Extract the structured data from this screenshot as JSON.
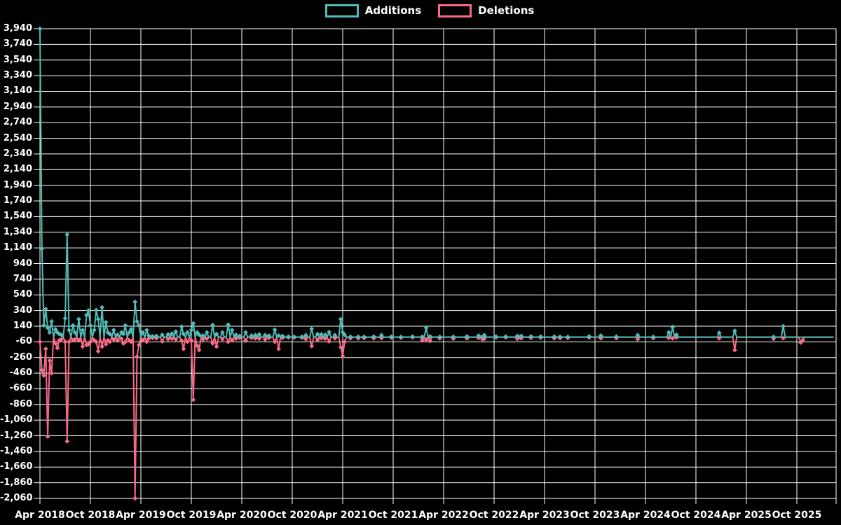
{
  "legend": {
    "additions_label": "Additions",
    "deletions_label": "Deletions"
  },
  "colors": {
    "background": "#000000",
    "grid": "#ffffff",
    "text": "#ffffff",
    "additions": "#4FBDB8",
    "deletions": "#FA6987"
  },
  "chart_data": {
    "type": "line",
    "title": "",
    "xlabel": "",
    "ylabel": "",
    "legend_position": "top-center",
    "grid": true,
    "ylim": [
      -2060,
      3940
    ],
    "y_tick_step": 200,
    "y_ticks": [
      3940,
      3740,
      3540,
      3340,
      3140,
      2940,
      2740,
      2540,
      2340,
      2140,
      1940,
      1740,
      1540,
      1340,
      1140,
      940,
      740,
      540,
      340,
      140,
      -60,
      -260,
      -460,
      -660,
      -860,
      -1060,
      -1260,
      -1460,
      -1660,
      -1860,
      -2060
    ],
    "y_tick_labels": [
      "3,940",
      "3,740",
      "3,540",
      "3,340",
      "3,140",
      "2,940",
      "2,740",
      "2,540",
      "2,340",
      "2,140",
      "1,940",
      "1,740",
      "1,540",
      "1,340",
      "1,140",
      "940",
      "740",
      "540",
      "340",
      "140",
      "-60",
      "-260",
      "-460",
      "-660",
      "-860",
      "-1,060",
      "-1,260",
      "-1,460",
      "-1,660",
      "-1,860",
      "-2,060"
    ],
    "x_tick_labels": [
      "Apr 2018",
      "Oct 2018",
      "Apr 2019",
      "Oct 2019",
      "Apr 2020",
      "Oct 2020",
      "Apr 2021",
      "Oct 2021",
      "Apr 2022",
      "Oct 2022",
      "Apr 2023",
      "Oct 2023",
      "Apr 2024",
      "Oct 2024",
      "Apr 2025",
      "Oct 2025"
    ],
    "weeks_per_x_tick": 26,
    "weeks_total": 410,
    "series": [
      {
        "name": "Additions",
        "color": "#4FBDB8",
        "sign": "positive"
      },
      {
        "name": "Deletions",
        "color": "#FA6987",
        "sign": "negative"
      }
    ],
    "points_format": "[week_index, additions, deletions] ; weeks not listed are [w, 0, 0]",
    "points": [
      [
        0,
        3940,
        -60
      ],
      [
        1,
        1130,
        -420
      ],
      [
        2,
        150,
        -490
      ],
      [
        3,
        360,
        -150
      ],
      [
        4,
        120,
        -1270
      ],
      [
        5,
        60,
        -300
      ],
      [
        6,
        200,
        -460
      ],
      [
        8,
        100,
        -80
      ],
      [
        9,
        60,
        -140
      ],
      [
        10,
        40,
        -40
      ],
      [
        11,
        30,
        -30
      ],
      [
        13,
        240,
        -60
      ],
      [
        14,
        1310,
        -1330
      ],
      [
        15,
        90,
        -60
      ],
      [
        17,
        150,
        -40
      ],
      [
        18,
        60,
        -30
      ],
      [
        20,
        230,
        -40
      ],
      [
        22,
        90,
        -120
      ],
      [
        24,
        280,
        -100
      ],
      [
        25,
        340,
        -90
      ],
      [
        26,
        150,
        -60
      ],
      [
        28,
        90,
        -40
      ],
      [
        29,
        345,
        -60
      ],
      [
        30,
        230,
        -180
      ],
      [
        32,
        380,
        -120
      ],
      [
        34,
        190,
        -90
      ],
      [
        35,
        60,
        -40
      ],
      [
        36,
        40,
        -60
      ],
      [
        38,
        90,
        -30
      ],
      [
        40,
        30,
        -40
      ],
      [
        42,
        60,
        -20
      ],
      [
        43,
        40,
        -80
      ],
      [
        44,
        150,
        -60
      ],
      [
        46,
        60,
        -40
      ],
      [
        47,
        100,
        -60
      ],
      [
        49,
        450,
        -2060
      ],
      [
        50,
        200,
        -250
      ],
      [
        51,
        150,
        -100
      ],
      [
        53,
        60,
        -40
      ],
      [
        55,
        90,
        -60
      ],
      [
        56,
        20,
        -20
      ],
      [
        58,
        10,
        -10
      ],
      [
        60,
        15,
        -15
      ],
      [
        63,
        30,
        -55
      ],
      [
        66,
        35,
        -25
      ],
      [
        68,
        45,
        -20
      ],
      [
        70,
        70,
        -30
      ],
      [
        73,
        135,
        -45
      ],
      [
        74,
        40,
        -150
      ],
      [
        76,
        60,
        -60
      ],
      [
        78,
        90,
        -40
      ],
      [
        79,
        175,
        -800
      ],
      [
        81,
        60,
        -110
      ],
      [
        82,
        30,
        -165
      ],
      [
        84,
        20,
        -30
      ],
      [
        86,
        60,
        -20
      ],
      [
        89,
        155,
        -80
      ],
      [
        91,
        40,
        -120
      ],
      [
        94,
        60,
        -25
      ],
      [
        97,
        160,
        -60
      ],
      [
        99,
        90,
        -40
      ],
      [
        101,
        30,
        -20
      ],
      [
        103,
        15,
        -10
      ],
      [
        106,
        60,
        -45
      ],
      [
        109,
        20,
        -10
      ],
      [
        111,
        25,
        -15
      ],
      [
        113,
        35,
        -20
      ],
      [
        116,
        25,
        -30
      ],
      [
        118,
        20,
        -10
      ],
      [
        121,
        95,
        -60
      ],
      [
        123,
        20,
        -150
      ],
      [
        125,
        15,
        -10
      ],
      [
        128,
        8,
        -5
      ],
      [
        131,
        5,
        -5
      ],
      [
        135,
        5,
        -8
      ],
      [
        137,
        25,
        -25
      ],
      [
        140,
        105,
        -115
      ],
      [
        143,
        40,
        -35
      ],
      [
        145,
        35,
        -15
      ],
      [
        147,
        30,
        -20
      ],
      [
        149,
        65,
        -55
      ],
      [
        152,
        25,
        -15
      ],
      [
        155,
        230,
        -130
      ],
      [
        156,
        60,
        -240
      ],
      [
        157,
        30,
        -60
      ],
      [
        160,
        5,
        -15
      ],
      [
        164,
        5,
        -15
      ],
      [
        167,
        5,
        -12
      ],
      [
        172,
        8,
        -15
      ],
      [
        176,
        25,
        -12
      ],
      [
        181,
        5,
        -5
      ],
      [
        186,
        3,
        -8
      ],
      [
        192,
        8,
        -3
      ],
      [
        197,
        5,
        -40
      ],
      [
        199,
        120,
        -30
      ],
      [
        201,
        10,
        -50
      ],
      [
        206,
        3,
        -15
      ],
      [
        213,
        5,
        -20
      ],
      [
        220,
        10,
        -15
      ],
      [
        226,
        20,
        -10
      ],
      [
        228,
        5,
        -25
      ],
      [
        229,
        25,
        -20
      ],
      [
        235,
        8,
        -3
      ],
      [
        240,
        8,
        -3
      ],
      [
        246,
        15,
        -20
      ],
      [
        248,
        15,
        -15
      ],
      [
        253,
        10,
        -10
      ],
      [
        258,
        8,
        -8
      ],
      [
        265,
        8,
        -15
      ],
      [
        268,
        5,
        -12
      ],
      [
        272,
        3,
        -10
      ],
      [
        283,
        10,
        -5
      ],
      [
        289,
        20,
        -15
      ],
      [
        297,
        8,
        -12
      ],
      [
        308,
        25,
        -25
      ],
      [
        316,
        3,
        -12
      ],
      [
        324,
        60,
        -10
      ],
      [
        326,
        130,
        -15
      ],
      [
        328,
        30,
        -5
      ],
      [
        350,
        55,
        -15
      ],
      [
        358,
        80,
        -165
      ],
      [
        378,
        3,
        -20
      ],
      [
        383,
        140,
        -12
      ],
      [
        392,
        0,
        -70
      ],
      [
        393,
        0,
        -40
      ]
    ]
  }
}
